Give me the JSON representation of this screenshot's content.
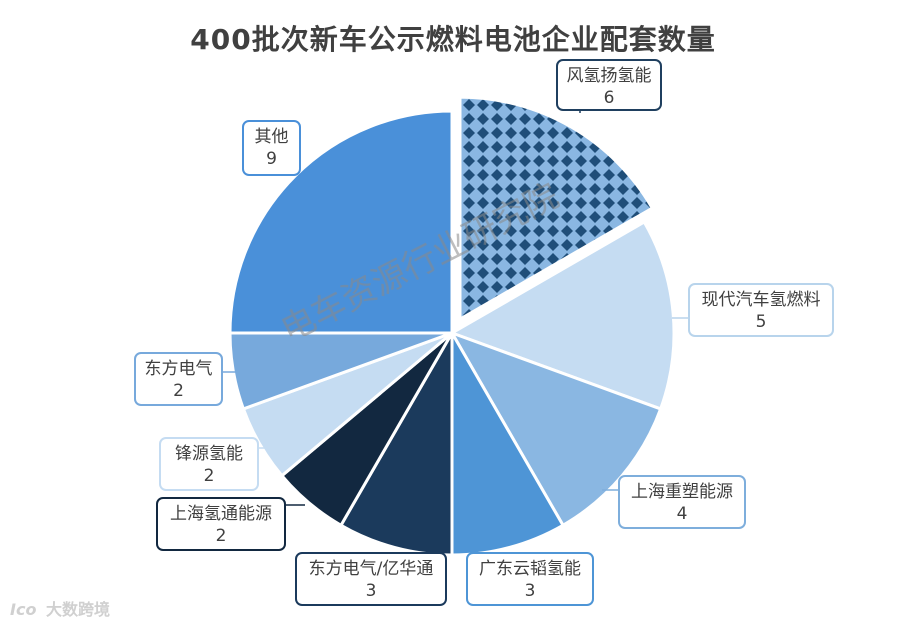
{
  "chart_data": {
    "type": "pie",
    "title": "400批次新车公示燃料电池企业配套数量",
    "slices": [
      {
        "label": "风氢扬氢能",
        "value": 6,
        "color": "#1f4e79",
        "pattern": "diamond",
        "exploded": true
      },
      {
        "label": "现代汽车氢燃料",
        "value": 5,
        "color": "#c5dcf2"
      },
      {
        "label": "上海重塑能源",
        "value": 4,
        "color": "#8ab7e2"
      },
      {
        "label": "广东云韬氢能",
        "value": 3,
        "color": "#4e95d6"
      },
      {
        "label": "东方电气/亿华通",
        "value": 3,
        "color": "#1b3a5c"
      },
      {
        "label": "上海氢通能源",
        "value": 2,
        "color": "#122840"
      },
      {
        "label": "锋源氢能",
        "value": 2,
        "color": "#c5dcf2"
      },
      {
        "label": "东方电气",
        "value": 2,
        "color": "#77a9dc"
      },
      {
        "label": "其他",
        "value": 9,
        "color": "#4a90d9"
      }
    ],
    "label_border_colors": [
      "#1f3f5f",
      "#b8d4ec",
      "#7eaedc",
      "#4e95d6",
      "#1b3a5c",
      "#122840",
      "#c5dcf2",
      "#77a9dc",
      "#4a90d9"
    ]
  },
  "watermark": "电车资源行业研究院",
  "brand": {
    "mark": "Ico",
    "text": "大数跨境"
  }
}
